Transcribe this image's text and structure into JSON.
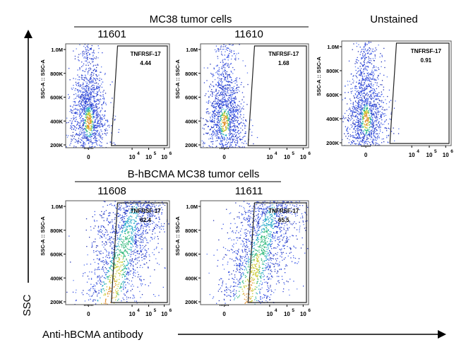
{
  "figure": {
    "group_top": "MC38  tumor cells",
    "group_bottom": "B-hBCMA MC38  tumor cells",
    "unstained": "Unstained",
    "y_axis_label": "SSC",
    "x_axis_label": "Anti-hBCMA antibody"
  },
  "chart_data": [
    {
      "type": "scatter",
      "title": "11601",
      "ylabel": "SSC-A :: SSC-A",
      "yticks": [
        "200K",
        "400K",
        "600K",
        "800K",
        "1.0M"
      ],
      "xticks": [
        "0",
        "10",
        "10",
        "10"
      ],
      "xtick_exponents": [
        "",
        "4",
        "5",
        "6"
      ],
      "gate_label": "TNFRSF-17",
      "gate_value": "4.44",
      "distribution": "negative"
    },
    {
      "type": "scatter",
      "title": "11610",
      "ylabel": "SSC-A :: SSC-A",
      "yticks": [
        "200K",
        "400K",
        "600K",
        "800K",
        "1.0M"
      ],
      "xticks": [
        "0",
        "10",
        "10",
        "10"
      ],
      "xtick_exponents": [
        "",
        "4",
        "5",
        "6"
      ],
      "gate_label": "TNFRSF-17",
      "gate_value": "1.68",
      "distribution": "negative"
    },
    {
      "type": "scatter",
      "title": "",
      "ylabel": "SSC-A :: SSC-A",
      "yticks": [
        "200K",
        "400K",
        "600K",
        "800K",
        "1.0M"
      ],
      "xticks": [
        "0",
        "10",
        "10",
        "10"
      ],
      "xtick_exponents": [
        "",
        "4",
        "5",
        "6"
      ],
      "gate_label": "TNFRSF-17",
      "gate_value": "0.91",
      "distribution": "negative"
    },
    {
      "type": "scatter",
      "title": "11608",
      "ylabel": "SSC-A :: SSC-A",
      "yticks": [
        "200K",
        "400K",
        "600K",
        "800K",
        "1.0M"
      ],
      "xticks": [
        "0",
        "10",
        "10",
        "10"
      ],
      "xtick_exponents": [
        "",
        "4",
        "5",
        "6"
      ],
      "gate_label": "TNFRSF-17",
      "gate_value": "62.4",
      "distribution": "positive"
    },
    {
      "type": "scatter",
      "title": "11611",
      "ylabel": "SSC-A :: SSC-A",
      "yticks": [
        "200K",
        "400K",
        "600K",
        "800K",
        "1.0M"
      ],
      "xticks": [
        "0",
        "10",
        "10",
        "10"
      ],
      "xtick_exponents": [
        "",
        "4",
        "5",
        "6"
      ],
      "gate_label": "TNFRSF-17",
      "gate_value": "65.5",
      "distribution": "positive"
    }
  ]
}
